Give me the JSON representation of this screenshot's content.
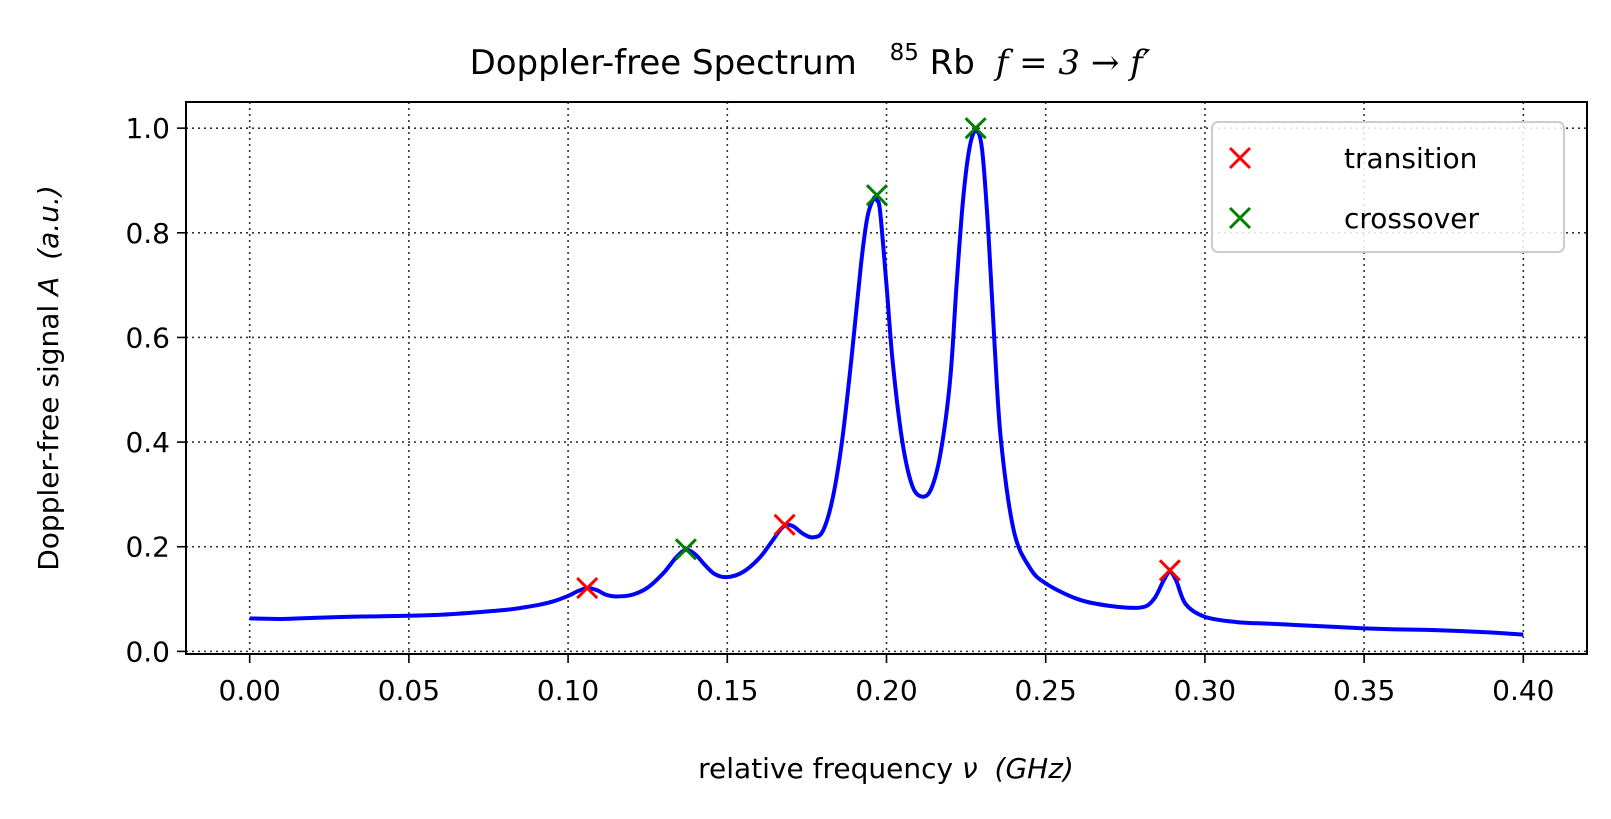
{
  "chart_data": {
    "type": "line",
    "title": "Doppler-free Spectrum  ⁸⁵Rb f = 3 → f′",
    "title_parts": {
      "main": "Doppler-free Spectrum",
      "isotope_mass": "85",
      "element": "Rb",
      "transition": "f = 3 → f′"
    },
    "xlabel": "relative frequency ν (GHz)",
    "xlabel_parts": {
      "text": "relative frequency ",
      "symbol": "ν",
      "unit": "(GHz)"
    },
    "ylabel": "Doppler-free signal A (a.u.)",
    "ylabel_parts": {
      "text": "Doppler-free signal ",
      "symbol": "A",
      "unit": "(a.u.)"
    },
    "xlim": [
      -0.02,
      0.42
    ],
    "ylim": [
      -0.005,
      1.05
    ],
    "xticks": [
      0.0,
      0.05,
      0.1,
      0.15,
      0.2,
      0.25,
      0.3,
      0.35,
      0.4
    ],
    "xtick_labels": [
      "0.00",
      "0.05",
      "0.10",
      "0.15",
      "0.20",
      "0.25",
      "0.30",
      "0.35",
      "0.40"
    ],
    "yticks": [
      0.0,
      0.2,
      0.4,
      0.6,
      0.8,
      1.0
    ],
    "ytick_labels": [
      "0.0",
      "0.2",
      "0.4",
      "0.6",
      "0.8",
      "1.0"
    ],
    "grid": true,
    "legend_position": "top-right",
    "colors": {
      "signal": "#0000ff",
      "transition": "#ff0000",
      "crossover": "#008000"
    },
    "series": [
      {
        "kind": "line",
        "color": "#0000ff",
        "x": [
          0.0,
          0.01,
          0.02,
          0.03,
          0.04,
          0.05,
          0.06,
          0.07,
          0.08,
          0.085,
          0.09,
          0.095,
          0.1,
          0.103,
          0.106,
          0.109,
          0.112,
          0.115,
          0.12,
          0.125,
          0.13,
          0.134,
          0.137,
          0.14,
          0.143,
          0.146,
          0.15,
          0.155,
          0.16,
          0.164,
          0.167,
          0.169,
          0.171,
          0.174,
          0.177,
          0.18,
          0.183,
          0.186,
          0.189,
          0.192,
          0.194,
          0.196,
          0.197,
          0.198,
          0.2,
          0.202,
          0.205,
          0.208,
          0.211,
          0.214,
          0.217,
          0.22,
          0.222,
          0.224,
          0.226,
          0.228,
          0.23,
          0.232,
          0.234,
          0.236,
          0.24,
          0.245,
          0.25,
          0.26,
          0.27,
          0.28,
          0.284,
          0.287,
          0.289,
          0.291,
          0.294,
          0.3,
          0.31,
          0.32,
          0.33,
          0.34,
          0.35,
          0.36,
          0.37,
          0.38,
          0.39,
          0.4
        ],
        "y": [
          0.063,
          0.062,
          0.064,
          0.066,
          0.067,
          0.068,
          0.07,
          0.074,
          0.079,
          0.083,
          0.088,
          0.095,
          0.106,
          0.115,
          0.121,
          0.117,
          0.108,
          0.105,
          0.108,
          0.122,
          0.15,
          0.18,
          0.194,
          0.185,
          0.165,
          0.148,
          0.142,
          0.152,
          0.178,
          0.21,
          0.235,
          0.242,
          0.238,
          0.224,
          0.218,
          0.23,
          0.29,
          0.4,
          0.56,
          0.74,
          0.83,
          0.866,
          0.862,
          0.84,
          0.7,
          0.55,
          0.4,
          0.318,
          0.296,
          0.31,
          0.38,
          0.52,
          0.7,
          0.86,
          0.96,
          0.995,
          0.96,
          0.8,
          0.58,
          0.4,
          0.23,
          0.16,
          0.13,
          0.1,
          0.087,
          0.084,
          0.1,
          0.135,
          0.152,
          0.135,
          0.09,
          0.066,
          0.056,
          0.053,
          0.05,
          0.047,
          0.044,
          0.042,
          0.041,
          0.039,
          0.036,
          0.032
        ]
      },
      {
        "name": "transition",
        "kind": "marker",
        "color": "#ff0000",
        "x": [
          0.106,
          0.168,
          0.289
        ],
        "y": [
          0.121,
          0.242,
          0.155
        ]
      },
      {
        "name": "crossover",
        "kind": "marker",
        "color": "#008000",
        "x": [
          0.137,
          0.197,
          0.228
        ],
        "y": [
          0.195,
          0.872,
          1.0
        ]
      }
    ]
  }
}
